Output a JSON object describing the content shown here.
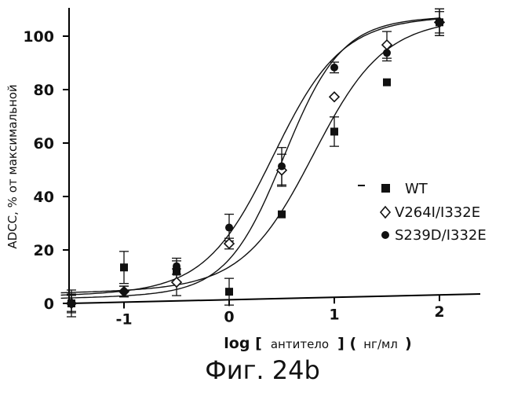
{
  "chart_data": {
    "type": "scatter",
    "ylabel": "ADCC, % от максимальной",
    "xlabel_parts": [
      "log [",
      "антитело",
      "] (",
      "нг/мл",
      ")"
    ],
    "xlim": [
      -1.62,
      2.05
    ],
    "ylim": [
      0,
      106
    ],
    "x_ticks": [
      -1,
      0,
      1,
      2
    ],
    "x_tick_labels": [
      "-1",
      "0",
      "1",
      "2"
    ],
    "y_ticks": [
      0,
      20,
      40,
      60,
      80,
      100
    ],
    "y_tick_labels": [
      "0",
      "20",
      "40",
      "60",
      "80",
      "100"
    ],
    "legend_position": "right",
    "series": [
      {
        "name": "WT",
        "marker": "filled-square",
        "points": [
          {
            "x": -1.5,
            "y": 0,
            "err": 5
          },
          {
            "x": -1.0,
            "y": 13,
            "err": 6
          },
          {
            "x": -0.5,
            "y": 11,
            "err": 4
          },
          {
            "x": 0.0,
            "y": 3,
            "err": 5
          },
          {
            "x": 0.5,
            "y": 31.5,
            "err": 0
          },
          {
            "x": 1.0,
            "y": 62,
            "err": 5.5
          },
          {
            "x": 1.5,
            "y": 80,
            "err": 0
          },
          {
            "x": 2.0,
            "y": 102,
            "err": 5
          }
        ],
        "fit": {
          "bottom": 4,
          "top": 103,
          "logEC50": 0.8,
          "hill": 1.3
        }
      },
      {
        "name": "V264I/I332E",
        "marker": "open-diamond",
        "points": [
          {
            "x": -1.5,
            "y": 0,
            "err": 3.5
          },
          {
            "x": -1.0,
            "y": 4,
            "err": 2
          },
          {
            "x": -0.5,
            "y": 7,
            "err": 5
          },
          {
            "x": 0.0,
            "y": 21,
            "err": 2
          },
          {
            "x": 0.5,
            "y": 48,
            "err": 6
          },
          {
            "x": 1.0,
            "y": 75,
            "err": 0
          },
          {
            "x": 1.5,
            "y": 94,
            "err": 5
          },
          {
            "x": 2.0,
            "y": 102,
            "err": 5
          }
        ],
        "fit": {
          "bottom": 2,
          "top": 104,
          "logEC50": 0.52,
          "hill": 1.6
        }
      },
      {
        "name": "S239D/I332E",
        "marker": "filled-circle",
        "points": [
          {
            "x": -1.5,
            "y": 0,
            "err": 3
          },
          {
            "x": -1.0,
            "y": 4,
            "err": 2
          },
          {
            "x": -0.5,
            "y": 13,
            "err": 3
          },
          {
            "x": 0.0,
            "y": 27,
            "err": 5
          },
          {
            "x": 0.5,
            "y": 49.5,
            "err": 7
          },
          {
            "x": 1.0,
            "y": 86,
            "err": 2
          },
          {
            "x": 1.5,
            "y": 91,
            "err": 3
          },
          {
            "x": 2.0,
            "y": 102,
            "err": 4
          }
        ],
        "fit": {
          "bottom": 3,
          "top": 104,
          "logEC50": 0.42,
          "hill": 1.35
        }
      }
    ]
  },
  "figure_caption": "Фиг. 24b"
}
